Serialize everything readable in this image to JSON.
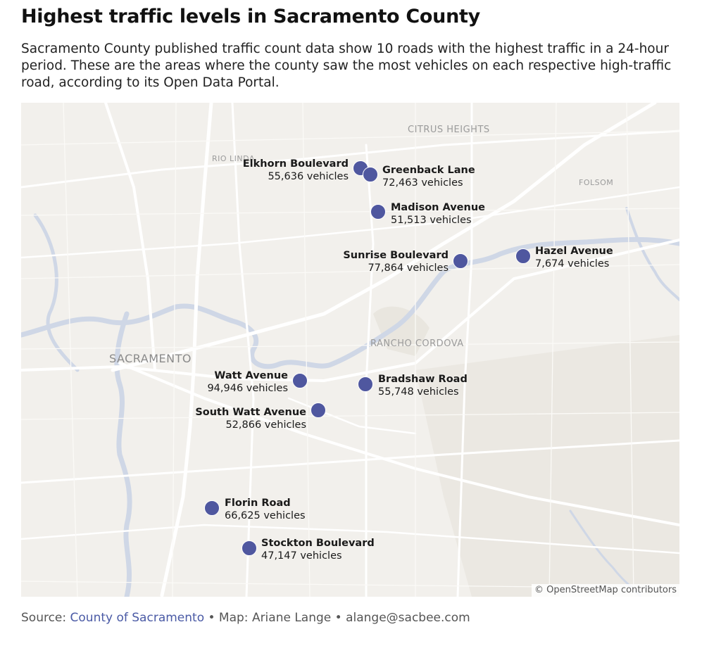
{
  "title": "Highest traffic levels in Sacramento County",
  "description": "Sacramento County published traffic count data show 10 roads with the highest traffic in a 24-hour period. These are the areas where the county saw the most vehicles on each respective high-traffic road, according to its Open Data Portal.",
  "map": {
    "place_labels": {
      "citrus_heights": "CITRUS HEIGHTS",
      "rio_linda": "RIO LINDA",
      "folsom": "FOLSOM",
      "rancho_cordova": "RANCHO CORDOVA",
      "sacramento": "SACRAMENTO"
    },
    "marker_color": "#4f579f",
    "markers": [
      {
        "name": "Elkhorn Boulevard",
        "value": "55,636 vehicles"
      },
      {
        "name": "Greenback Lane",
        "value": "72,463 vehicles"
      },
      {
        "name": "Madison Avenue",
        "value": "51,513 vehicles"
      },
      {
        "name": "Sunrise Boulevard",
        "value": "77,864 vehicles"
      },
      {
        "name": "Hazel Avenue",
        "value": "7,674 vehicles"
      },
      {
        "name": "Watt Avenue",
        "value": "94,946 vehicles"
      },
      {
        "name": "Bradshaw Road",
        "value": "55,748 vehicles"
      },
      {
        "name": "South Watt Avenue",
        "value": "52,866 vehicles"
      },
      {
        "name": "Florin Road",
        "value": "66,625 vehicles"
      },
      {
        "name": "Stockton Boulevard",
        "value": "47,147 vehicles"
      }
    ],
    "attribution": "© OpenStreetMap contributors"
  },
  "source": {
    "label": "Source:",
    "link_text": "County of Sacramento",
    "credit": "• Map: Ariane Lange • alange@sacbee.com"
  }
}
